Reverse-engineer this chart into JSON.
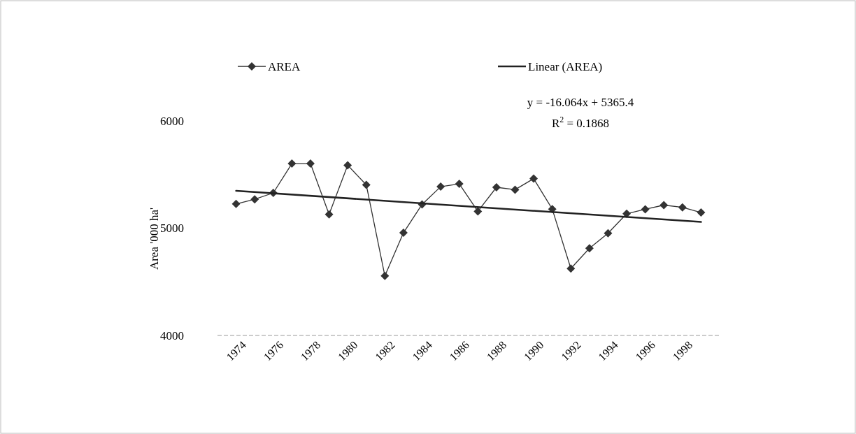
{
  "chart_data": {
    "type": "line",
    "ylabel": "Area '000 ha'",
    "x": [
      1974,
      1975,
      1976,
      1977,
      1978,
      1979,
      1980,
      1981,
      1982,
      1983,
      1984,
      1985,
      1986,
      1987,
      1988,
      1989,
      1990,
      1991,
      1992,
      1993,
      1994,
      1995,
      1996,
      1997,
      1998,
      1999
    ],
    "series": [
      {
        "name": "AREA",
        "color": "#333333",
        "marker": "diamond",
        "values": [
          5226,
          5269,
          5329,
          5602,
          5602,
          5129,
          5587,
          5404,
          4555,
          4957,
          5222,
          5387,
          5413,
          5157,
          5381,
          5359,
          5462,
          5178,
          4624,
          4813,
          4953,
          5135,
          5176,
          5215,
          5194,
          5146
        ]
      },
      {
        "name": "Linear (AREA)",
        "type": "line",
        "color": "#222222",
        "marker": "none",
        "x": [
          1974,
          1999
        ],
        "values": [
          5348,
          5058
        ]
      }
    ],
    "xlim": [
      1973,
      2000
    ],
    "xticks": [
      1974,
      1976,
      1978,
      1980,
      1982,
      1984,
      1986,
      1988,
      1990,
      1992,
      1994,
      1996,
      1998
    ],
    "ylim": [
      4000,
      6000
    ],
    "yticks": [
      4000,
      5000,
      6000
    ],
    "legend": "top",
    "grid": false,
    "annotations": [
      "y = -16.064x + 5365.4",
      "R$^{2}$ = 0.1868"
    ]
  }
}
